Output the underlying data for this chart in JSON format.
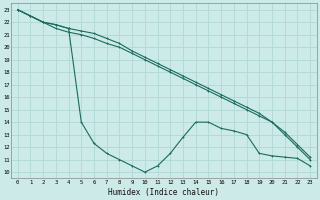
{
  "xlabel": "Humidex (Indice chaleur)",
  "ylabel": "",
  "bg_color": "#cceae8",
  "grid_color": "#b0d8d5",
  "line_color": "#1a6b5e",
  "xlim": [
    -0.5,
    23.5
  ],
  "ylim": [
    9.5,
    23.5
  ],
  "xticks": [
    0,
    1,
    2,
    3,
    4,
    5,
    6,
    7,
    8,
    9,
    10,
    11,
    12,
    13,
    14,
    15,
    16,
    17,
    18,
    19,
    20,
    21,
    22,
    23
  ],
  "yticks": [
    10,
    11,
    12,
    13,
    14,
    15,
    16,
    17,
    18,
    19,
    20,
    21,
    22,
    23
  ],
  "line1_x": [
    0,
    1,
    2,
    3,
    4,
    5,
    6,
    7,
    8,
    9,
    10,
    11,
    12,
    13,
    14,
    15,
    16,
    17,
    18,
    19,
    20,
    21,
    22,
    23
  ],
  "line1_y": [
    23,
    22.5,
    22,
    21.5,
    21.2,
    21,
    20.7,
    20.3,
    20,
    19.5,
    19,
    18.5,
    18,
    17.5,
    17,
    16.5,
    16,
    15.5,
    15,
    14.5,
    14,
    13,
    12,
    11
  ],
  "line2_x": [
    0,
    1,
    2,
    3,
    4,
    5,
    6,
    7,
    8,
    9,
    10,
    11,
    12,
    13,
    14,
    15,
    16,
    17,
    18,
    19,
    20,
    21,
    22,
    23
  ],
  "line2_y": [
    23,
    22.5,
    22,
    21.8,
    21.5,
    21.3,
    21.1,
    20.7,
    20.3,
    19.7,
    19.2,
    18.7,
    18.2,
    17.7,
    17.2,
    16.7,
    16.2,
    15.7,
    15.2,
    14.7,
    14,
    13.2,
    12.2,
    11.2
  ],
  "line3_x": [
    0,
    1,
    2,
    3,
    4,
    5,
    6,
    7,
    8,
    9,
    10,
    11,
    12,
    13,
    14,
    15,
    16,
    17,
    18,
    19,
    20,
    21,
    22,
    23
  ],
  "line3_y": [
    23,
    22.5,
    22,
    21.8,
    21.5,
    14.0,
    12.3,
    11.5,
    11.0,
    10.5,
    10.0,
    10.5,
    11.5,
    12.8,
    14.0,
    14.0,
    13.5,
    13.3,
    13.0,
    11.5,
    11.3,
    11.2,
    11.1,
    10.5
  ]
}
